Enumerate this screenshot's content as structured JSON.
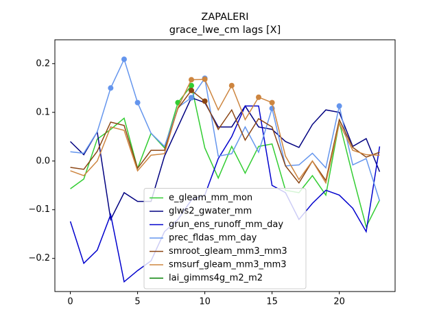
{
  "chart_data": {
    "type": "line",
    "title": "ZAPALERI",
    "subtitle": "grace_lwe_cm lags [X]",
    "x": [
      0,
      1,
      2,
      3,
      4,
      5,
      6,
      7,
      8,
      9,
      10,
      11,
      12,
      13,
      14,
      15,
      16,
      17,
      18,
      19,
      20,
      21,
      22,
      23
    ],
    "xlim": [
      -1.15,
      24.15
    ],
    "xticks": [
      0,
      5,
      10,
      15,
      20
    ],
    "ylim": [
      -0.268,
      0.249
    ],
    "yticks": [
      {
        "value": -0.2,
        "label": "−0.2"
      },
      {
        "value": -0.1,
        "label": "−0.1"
      },
      {
        "value": 0,
        "label": "0.0"
      },
      0.1,
      0.2
    ],
    "legend": "lower center",
    "series": [
      {
        "name": "e_gleam_mm_mon",
        "color": "#32cd32",
        "markers": [
          8,
          9
        ],
        "values": [
          -0.057,
          -0.037,
          0.045,
          0.065,
          0.088,
          -0.015,
          0.057,
          0.027,
          0.12,
          0.155,
          0.027,
          -0.035,
          0.03,
          -0.025,
          0.03,
          0.035,
          -0.06,
          -0.065,
          -0.03,
          -0.07,
          0.08,
          -0.03,
          -0.135,
          -0.08
        ]
      },
      {
        "name": "glws2_gwater_mm",
        "color": "#000080",
        "markers": [
          9
        ],
        "values": [
          0.04,
          0.013,
          0.06,
          -0.12,
          -0.065,
          -0.083,
          -0.083,
          0.01,
          0.07,
          0.13,
          0.12,
          0.07,
          0.07,
          0.113,
          0.07,
          0.065,
          0.04,
          0.028,
          0.075,
          0.105,
          0.1,
          0.03,
          0.046,
          -0.022
        ]
      },
      {
        "name": "grun_ens_runoff_mm_day",
        "color": "#0000cd",
        "markers": [],
        "values": [
          -0.124,
          -0.21,
          -0.183,
          -0.11,
          -0.248,
          -0.225,
          -0.205,
          -0.145,
          -0.12,
          -0.08,
          -0.07,
          0.005,
          0.05,
          0.113,
          0.113,
          -0.05,
          -0.065,
          -0.12,
          -0.087,
          -0.06,
          -0.07,
          -0.097,
          -0.145,
          0.03
        ]
      },
      {
        "name": "prec_fldas_mm_day",
        "color": "#6495ed",
        "markers": [
          3,
          4,
          5,
          9,
          10,
          15,
          20
        ],
        "values": [
          0.019,
          0.016,
          0.06,
          0.15,
          0.209,
          0.12,
          0.057,
          0.03,
          0.11,
          0.13,
          0.17,
          0.01,
          0.015,
          0.07,
          0.018,
          0.108,
          -0.01,
          -0.008,
          0.016,
          -0.014,
          0.113,
          -0.008,
          0.005,
          -0.082
        ]
      },
      {
        "name": "smroot_gleam_mm3_mm3",
        "color": "#8b4513",
        "markers": [
          9,
          10
        ],
        "values": [
          -0.013,
          -0.017,
          0.02,
          0.08,
          0.073,
          -0.015,
          0.022,
          0.022,
          0.108,
          0.145,
          0.123,
          0.065,
          0.105,
          0.043,
          0.087,
          0.07,
          -0.01,
          -0.045,
          0,
          -0.04,
          0.085,
          0.028,
          0.008,
          0.018
        ]
      },
      {
        "name": "smsurf_gleam_mm3_mm3",
        "color": "#cd853f",
        "markers": [
          9,
          10,
          12,
          14,
          15
        ],
        "values": [
          -0.02,
          -0.03,
          0,
          0.07,
          0.063,
          -0.02,
          0.012,
          0.015,
          0.11,
          0.167,
          0.168,
          0.105,
          0.155,
          0.085,
          0.131,
          0.12,
          0.01,
          -0.038,
          0,
          -0.045,
          0.078,
          0.022,
          0.013,
          0.012
        ]
      },
      {
        "name": "lai_gimms4g_m2_m2",
        "color": "#008000",
        "markers": [],
        "values": [
          null,
          null,
          null,
          null,
          null,
          null,
          null,
          null,
          null,
          null,
          null,
          null,
          null,
          null,
          null,
          null,
          null,
          null,
          null,
          null,
          null,
          null,
          null,
          null
        ]
      }
    ]
  }
}
